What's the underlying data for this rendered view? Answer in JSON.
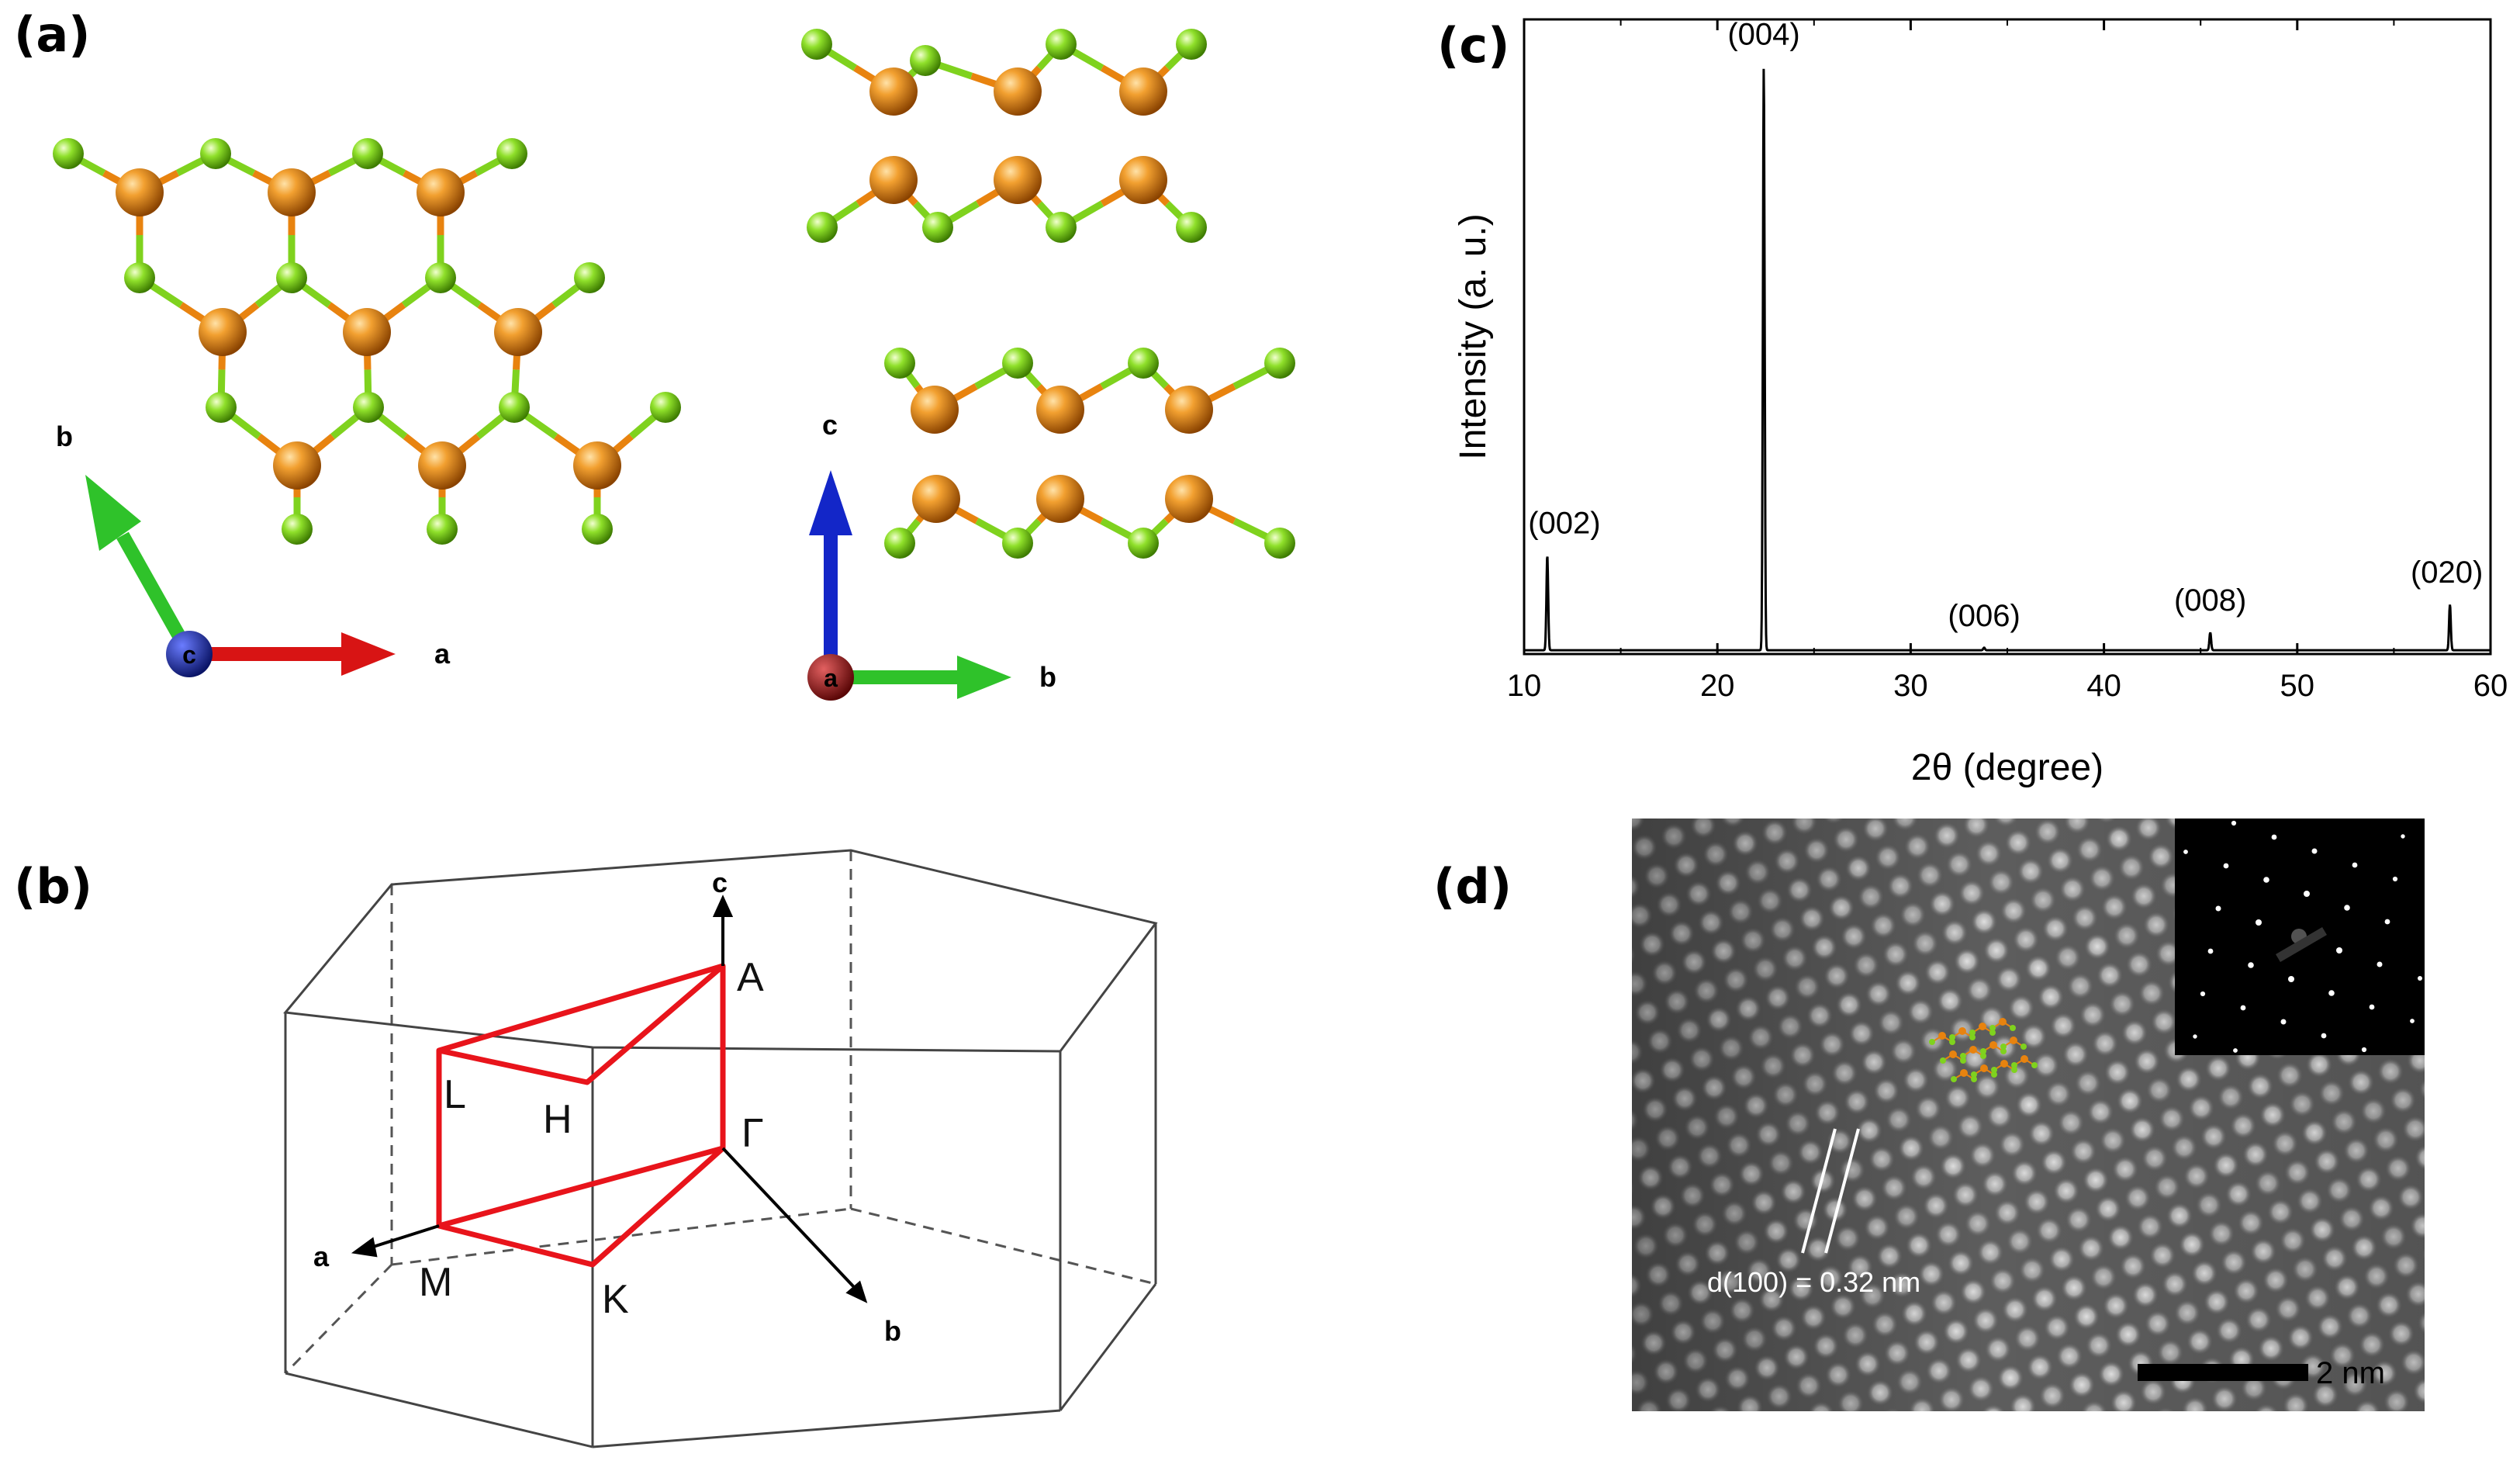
{
  "panels": {
    "a": {
      "letter": "(a)",
      "top_view_axes": {
        "b": "b",
        "a": "a",
        "origin": "c"
      },
      "side_view_axes": {
        "c": "c",
        "b": "b",
        "origin": "a"
      },
      "colors": {
        "metal_atom": "#e8830f",
        "nonmetal_atom": "#7fd21e",
        "axis_a": "#d81414",
        "axis_b": "#2fc22a",
        "axis_c": "#1326c8",
        "origin_c": "#0f1c8a",
        "origin_a": "#8e1010"
      }
    },
    "b": {
      "letter": "(b)",
      "points": {
        "A": "A",
        "L": "L",
        "H": "H",
        "gamma": "Γ",
        "M": "M",
        "K": "K"
      },
      "axes": {
        "a": "a",
        "b": "b",
        "c": "c"
      },
      "colors": {
        "path": "#e8141b",
        "frame": "#444444"
      }
    },
    "c": {
      "letter": "(c)",
      "chart_data": {
        "type": "line",
        "xlabel": "2θ (degree)",
        "ylabel": "Intensity (a. u.)",
        "xlim": [
          10,
          60
        ],
        "ylim": [
          0,
          100
        ],
        "xticks": [
          10,
          20,
          30,
          40,
          50,
          60
        ],
        "grid": false,
        "baseline": 0.6,
        "peaks": [
          {
            "x": 11.2,
            "height": 15,
            "label": "(002)"
          },
          {
            "x": 22.4,
            "height": 92,
            "label": "(004)"
          },
          {
            "x": 33.8,
            "height": 0.4,
            "label": "(006)"
          },
          {
            "x": 45.5,
            "height": 2.8,
            "label": "(008)"
          },
          {
            "x": 57.9,
            "height": 7.2,
            "label": "(020)"
          }
        ]
      }
    },
    "d": {
      "letter": "(d)",
      "annotation": "d(100) = 0.32 nm",
      "scale_bar": "2 nm"
    }
  }
}
